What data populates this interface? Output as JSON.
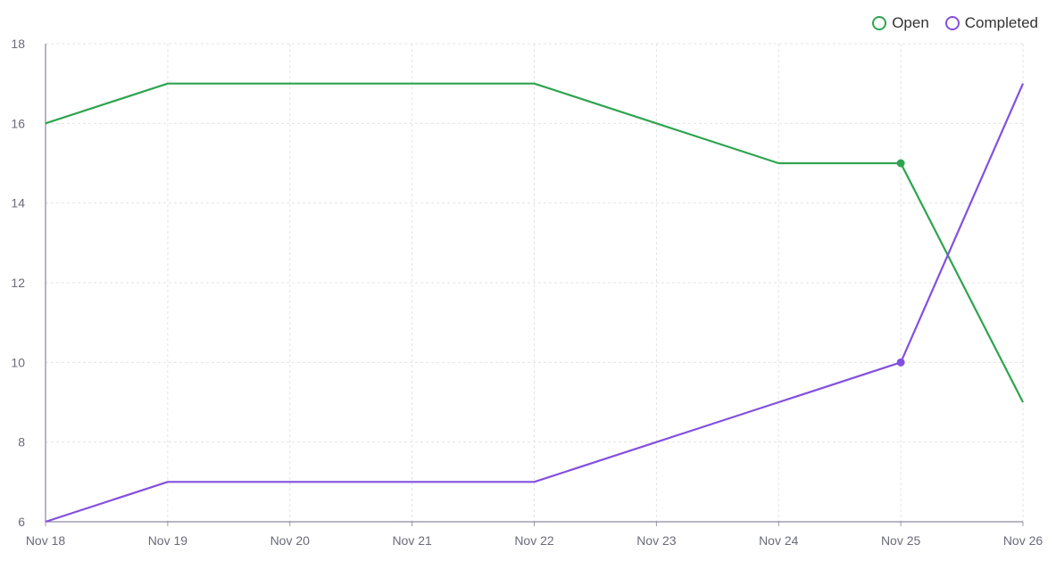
{
  "chart_data": {
    "type": "line",
    "title": "",
    "xlabel": "",
    "ylabel": "",
    "categories": [
      "Nov 18",
      "Nov 19",
      "Nov 20",
      "Nov 21",
      "Nov 22",
      "Nov 23",
      "Nov 24",
      "Nov 25",
      "Nov 26"
    ],
    "ylim": [
      6,
      18
    ],
    "yticks": [
      6,
      8,
      10,
      12,
      14,
      16,
      18
    ],
    "grid": true,
    "legend_position": "top-right",
    "series": [
      {
        "name": "Open",
        "color": "#2ea44f",
        "values": [
          16,
          17,
          17,
          17,
          17,
          16,
          15,
          15,
          9
        ]
      },
      {
        "name": "Completed",
        "color": "#8250df",
        "values": [
          6,
          7,
          7,
          7,
          7,
          8,
          9,
          10,
          17
        ]
      }
    ],
    "highlighted_index": 7
  }
}
